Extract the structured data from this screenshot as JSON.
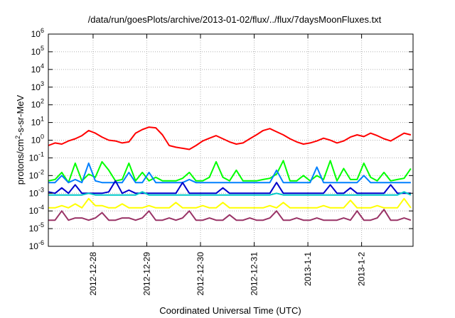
{
  "chart_data": {
    "type": "line",
    "title": "/data/run/goesPlots/archive/2013-01-02/flux/../flux/7daysMoonFluxes.txt",
    "xlabel": "Coordinated Universal Time (UTC)",
    "ylabel_parts": [
      "protons/cm",
      "2",
      "-s-sr-MeV"
    ],
    "yscale": "log",
    "ylim": [
      1e-06,
      1000000.0
    ],
    "grid": true,
    "y_ticks": [
      {
        "base": "10",
        "exp": "-6",
        "value": 1e-06
      },
      {
        "base": "10",
        "exp": "-5",
        "value": 1e-05
      },
      {
        "base": "10",
        "exp": "-4",
        "value": 0.0001
      },
      {
        "base": "10",
        "exp": "-3",
        "value": 0.001
      },
      {
        "base": "10",
        "exp": "-2",
        "value": 0.01
      },
      {
        "base": "10",
        "exp": "-1",
        "value": 0.1
      },
      {
        "base": "10",
        "exp": "0",
        "value": 1
      },
      {
        "base": "10",
        "exp": "1",
        "value": 10
      },
      {
        "base": "10",
        "exp": "2",
        "value": 100
      },
      {
        "base": "10",
        "exp": "3",
        "value": 1000
      },
      {
        "base": "10",
        "exp": "4",
        "value": 10000
      },
      {
        "base": "10",
        "exp": "5",
        "value": 100000
      },
      {
        "base": "10",
        "exp": "6",
        "value": 1000000
      }
    ],
    "x_range": [
      "2012-12-27 04:00",
      "2013-01-02 23:00"
    ],
    "x_ticks": [
      {
        "label": "2012-12-28",
        "x": "2012-12-28 00:00"
      },
      {
        "label": "2012-12-29",
        "x": "2012-12-29 00:00"
      },
      {
        "label": "2012-12-30",
        "x": "2012-12-30 00:00"
      },
      {
        "label": "2012-12-31",
        "x": "2012-12-31 00:00"
      },
      {
        "label": "2013-1-1",
        "x": "2013-01-01 00:00"
      },
      {
        "label": "2013-1-2",
        "x": "2013-01-02 00:00"
      }
    ],
    "x": [
      "2012-12-27 04:00",
      "2012-12-27 07:00",
      "2012-12-27 10:00",
      "2012-12-27 13:00",
      "2012-12-27 16:00",
      "2012-12-27 19:00",
      "2012-12-27 22:00",
      "2012-12-28 01:00",
      "2012-12-28 04:00",
      "2012-12-28 07:00",
      "2012-12-28 10:00",
      "2012-12-28 13:00",
      "2012-12-28 16:00",
      "2012-12-28 19:00",
      "2012-12-28 22:00",
      "2012-12-29 01:00",
      "2012-12-29 04:00",
      "2012-12-29 07:00",
      "2012-12-29 10:00",
      "2012-12-29 13:00",
      "2012-12-29 16:00",
      "2012-12-29 19:00",
      "2012-12-29 22:00",
      "2012-12-30 01:00",
      "2012-12-30 04:00",
      "2012-12-30 07:00",
      "2012-12-30 10:00",
      "2012-12-30 13:00",
      "2012-12-30 16:00",
      "2012-12-30 19:00",
      "2012-12-30 22:00",
      "2012-12-31 01:00",
      "2012-12-31 04:00",
      "2012-12-31 07:00",
      "2012-12-31 10:00",
      "2012-12-31 13:00",
      "2012-12-31 16:00",
      "2012-12-31 19:00",
      "2012-12-31 22:00",
      "2013-01-01 01:00",
      "2013-01-01 04:00",
      "2013-01-01 07:00",
      "2013-01-01 10:00",
      "2013-01-01 13:00",
      "2013-01-01 16:00",
      "2013-01-01 19:00",
      "2013-01-01 22:00",
      "2013-01-02 01:00",
      "2013-01-02 04:00",
      "2013-01-02 07:00",
      "2013-01-02 10:00",
      "2013-01-02 13:00",
      "2013-01-02 16:00",
      "2013-01-02 19:00",
      "2013-01-02 22:00"
    ],
    "series": [
      {
        "color": "#ff0000",
        "values": [
          0.5,
          0.7,
          0.6,
          0.9,
          1.2,
          1.8,
          3.5,
          2.5,
          1.5,
          1.0,
          0.9,
          0.7,
          0.8,
          2.5,
          4.0,
          5.5,
          5.0,
          2.0,
          0.5,
          0.4,
          0.35,
          0.3,
          0.5,
          0.9,
          1.3,
          1.8,
          1.2,
          0.8,
          0.6,
          0.7,
          1.2,
          2.0,
          3.5,
          4.5,
          3.0,
          2.0,
          1.2,
          0.8,
          0.6,
          0.7,
          0.9,
          1.3,
          1.0,
          0.7,
          0.9,
          1.5,
          2.0,
          1.6,
          2.5,
          1.8,
          1.2,
          0.9,
          1.5,
          2.5,
          2.0
        ]
      },
      {
        "color": "#00ff00",
        "values": [
          0.005,
          0.006,
          0.015,
          0.004,
          0.05,
          0.005,
          0.012,
          0.008,
          0.06,
          0.02,
          0.005,
          0.006,
          0.05,
          0.005,
          0.015,
          0.005,
          0.008,
          0.005,
          0.005,
          0.005,
          0.007,
          0.015,
          0.005,
          0.005,
          0.008,
          0.06,
          0.008,
          0.005,
          0.02,
          0.005,
          0.005,
          0.005,
          0.006,
          0.007,
          0.012,
          0.07,
          0.005,
          0.005,
          0.01,
          0.005,
          0.01,
          0.006,
          0.07,
          0.005,
          0.025,
          0.006,
          0.006,
          0.05,
          0.008,
          0.005,
          0.015,
          0.005,
          0.006,
          0.007,
          0.025
        ]
      },
      {
        "color": "#0080ff",
        "values": [
          0.004,
          0.004,
          0.01,
          0.004,
          0.006,
          0.004,
          0.05,
          0.005,
          0.004,
          0.004,
          0.004,
          0.004,
          0.015,
          0.004,
          0.004,
          0.015,
          0.004,
          0.004,
          0.004,
          0.004,
          0.004,
          0.006,
          0.004,
          0.004,
          0.004,
          0.004,
          0.004,
          0.004,
          0.004,
          0.004,
          0.004,
          0.004,
          0.004,
          0.004,
          0.02,
          0.004,
          0.004,
          0.004,
          0.004,
          0.004,
          0.03,
          0.004,
          0.004,
          0.004,
          0.004,
          0.004,
          0.004,
          0.01,
          0.004,
          0.004,
          0.004,
          0.004,
          0.004,
          0.004,
          0.004
        ]
      },
      {
        "color": "#0000cc",
        "values": [
          0.0012,
          0.001,
          0.002,
          0.001,
          0.003,
          0.001,
          0.001,
          0.001,
          0.001,
          0.0012,
          0.005,
          0.001,
          0.0015,
          0.001,
          0.001,
          0.001,
          0.001,
          0.001,
          0.001,
          0.001,
          0.004,
          0.001,
          0.001,
          0.001,
          0.001,
          0.001,
          0.002,
          0.001,
          0.001,
          0.001,
          0.001,
          0.001,
          0.001,
          0.001,
          0.004,
          0.001,
          0.001,
          0.001,
          0.001,
          0.001,
          0.001,
          0.001,
          0.003,
          0.001,
          0.001,
          0.002,
          0.001,
          0.001,
          0.001,
          0.001,
          0.001,
          0.003,
          0.001,
          0.001,
          0.001
        ]
      },
      {
        "color": "#00c8c8",
        "values": [
          0.0008,
          0.0008,
          0.0008,
          0.0008,
          0.0008,
          0.0008,
          0.001,
          0.0008,
          0.0008,
          0.0008,
          0.0008,
          0.0008,
          0.0008,
          0.0008,
          0.0012,
          0.0008,
          0.0008,
          0.0008,
          0.0008,
          0.0008,
          0.0008,
          0.0008,
          0.0008,
          0.0008,
          0.0008,
          0.0008,
          0.0008,
          0.0008,
          0.0008,
          0.0008,
          0.0008,
          0.0008,
          0.0008,
          0.0008,
          0.001,
          0.0008,
          0.0008,
          0.0008,
          0.0008,
          0.0008,
          0.0008,
          0.0008,
          0.0008,
          0.0008,
          0.0008,
          0.0008,
          0.0008,
          0.0008,
          0.0008,
          0.0008,
          0.0008,
          0.0008,
          0.0008,
          0.0012,
          0.0008
        ]
      },
      {
        "color": "#ffff00",
        "values": [
          0.00015,
          0.00015,
          0.0002,
          0.00015,
          0.00025,
          0.00015,
          0.0005,
          0.0002,
          0.0002,
          0.00015,
          0.00015,
          0.00025,
          0.00015,
          0.00015,
          0.00015,
          0.0002,
          0.00015,
          0.00015,
          0.00015,
          0.0003,
          0.00015,
          0.00015,
          0.00015,
          0.0002,
          0.00015,
          0.00015,
          0.0003,
          0.00015,
          0.00015,
          0.00015,
          0.00015,
          0.00015,
          0.00015,
          0.0002,
          0.00015,
          0.0003,
          0.00015,
          0.00015,
          0.00015,
          0.00015,
          0.00015,
          0.0002,
          0.00015,
          0.00015,
          0.00015,
          0.0004,
          0.00015,
          0.00015,
          0.00015,
          0.0002,
          0.00015,
          0.00015,
          0.00015,
          0.0005,
          0.00015
        ]
      },
      {
        "color": "#993366",
        "values": [
          3e-05,
          3e-05,
          0.0001,
          3e-05,
          4e-05,
          4e-05,
          3e-05,
          4e-05,
          8e-05,
          3e-05,
          3e-05,
          4e-05,
          4e-05,
          3e-05,
          4e-05,
          0.0001,
          3e-05,
          3e-05,
          4e-05,
          3e-05,
          4e-05,
          0.0001,
          3e-05,
          3e-05,
          4e-05,
          3e-05,
          3e-05,
          6e-05,
          3e-05,
          3e-05,
          4e-05,
          3e-05,
          3e-05,
          4e-05,
          0.0001,
          3e-05,
          3e-05,
          4e-05,
          3e-05,
          3e-05,
          4e-05,
          3e-05,
          3e-05,
          3e-05,
          4e-05,
          3e-05,
          0.0001,
          3e-05,
          3e-05,
          4e-05,
          0.00012,
          3e-05,
          3e-05,
          4e-05,
          3e-05
        ]
      }
    ]
  }
}
